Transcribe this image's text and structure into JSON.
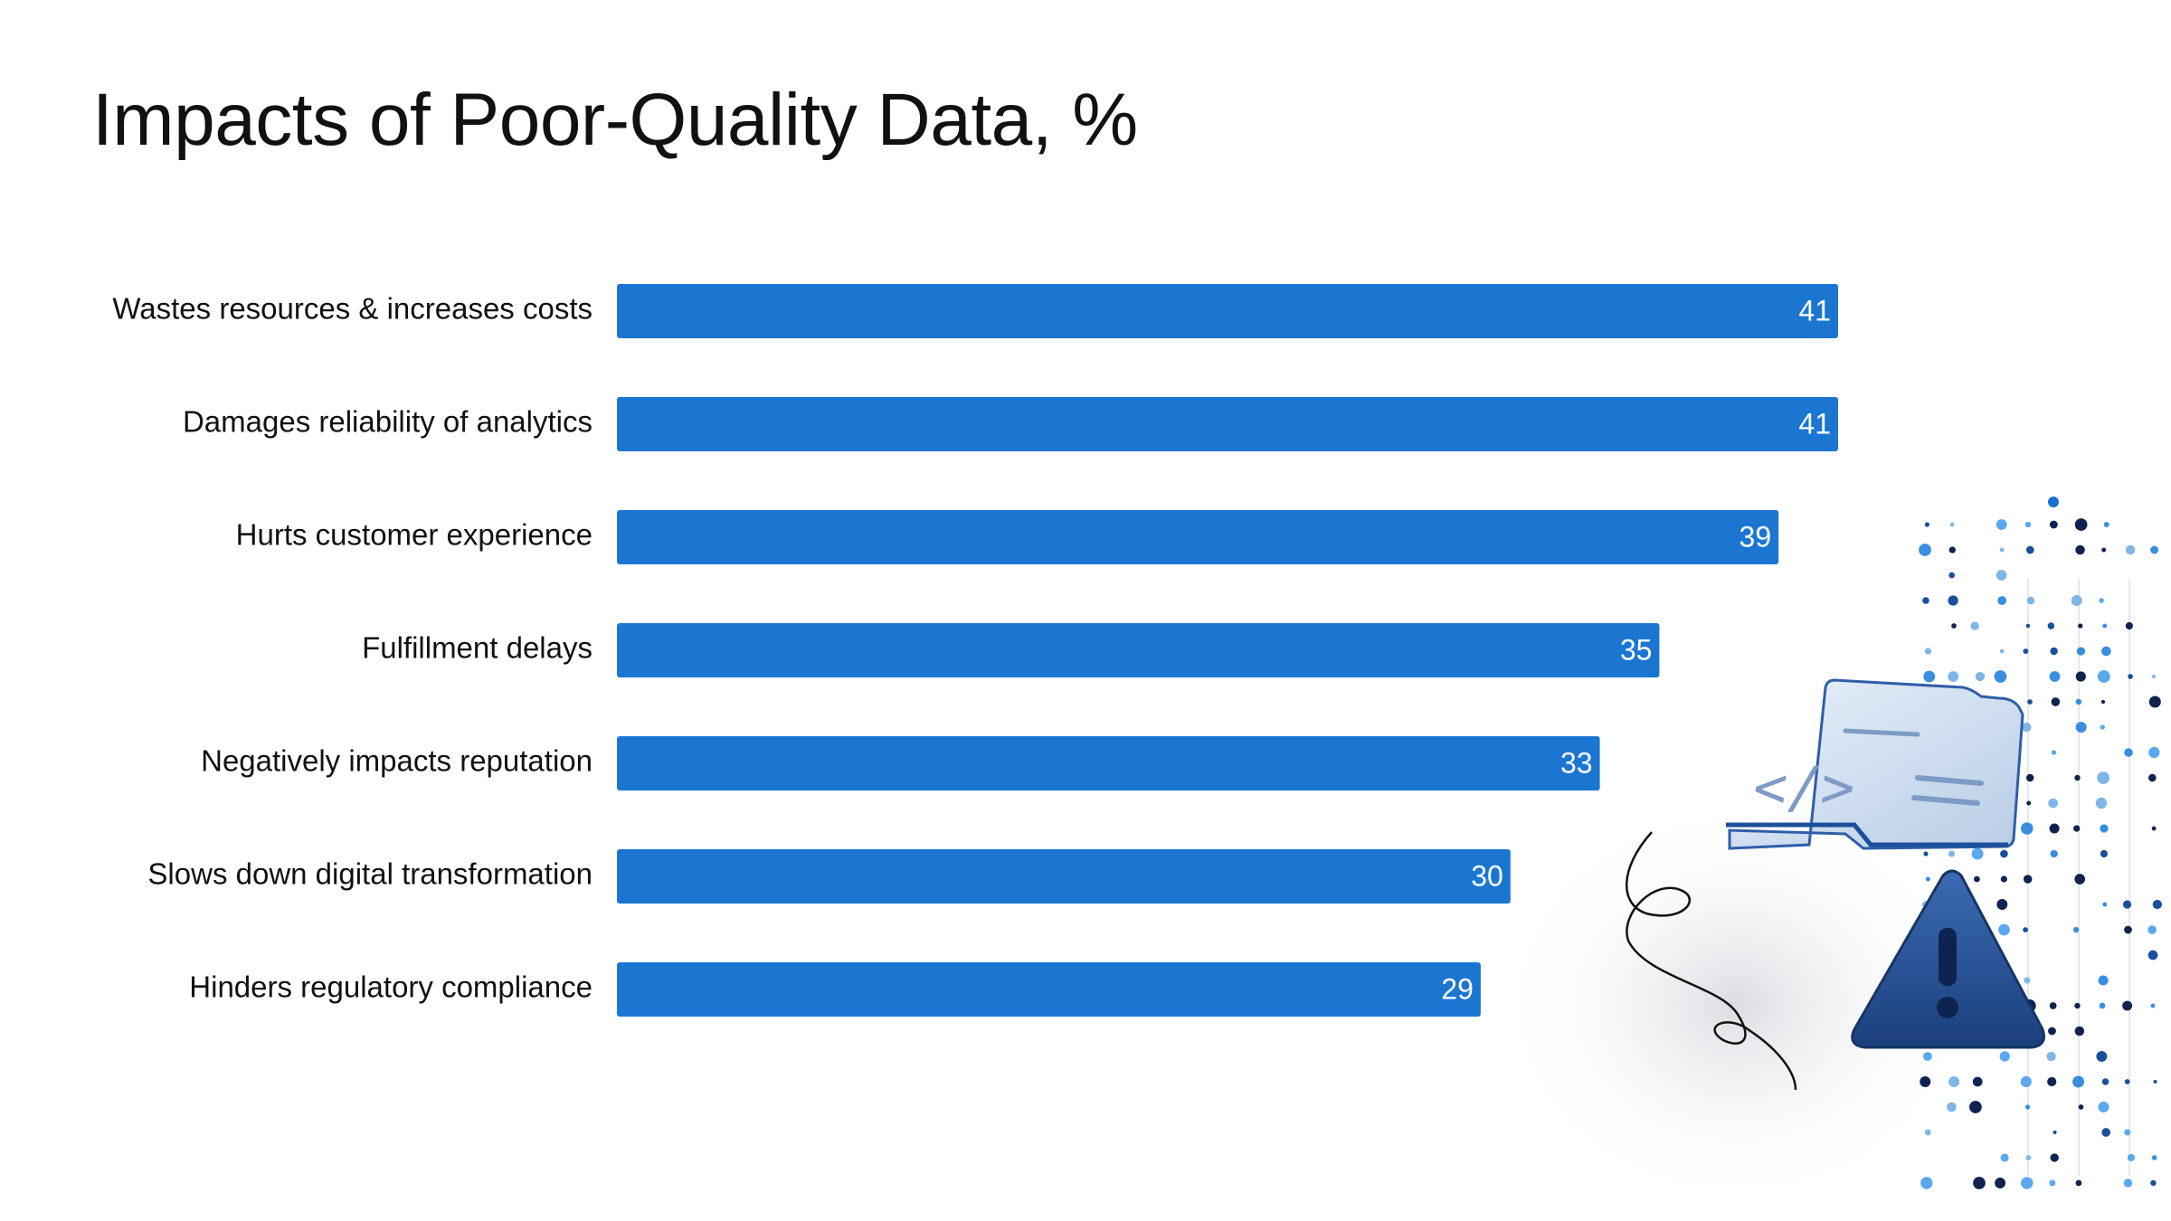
{
  "title": "Impacts of Poor-Quality Data, %",
  "colors": {
    "bar": "#1b76d2",
    "value_label": "#ffffff",
    "text": "#111111"
  },
  "decoration": {
    "icons": [
      "code-folder-icon",
      "warning-icon"
    ]
  },
  "chart_data": {
    "type": "bar",
    "orientation": "horizontal",
    "title": "Impacts of Poor-Quality Data, %",
    "categories": [
      "Wastes resources & increases costs",
      "Damages reliability of analytics",
      "Hurts customer experience",
      "Fulfillment delays",
      "Negatively impacts reputation",
      "Slows down digital transformation",
      "Hinders regulatory compliance"
    ],
    "values": [
      41,
      41,
      39,
      35,
      33,
      30,
      29
    ],
    "xlabel": "",
    "ylabel": "",
    "xlim": [
      0,
      41
    ],
    "grid": false,
    "data_labels": true
  }
}
